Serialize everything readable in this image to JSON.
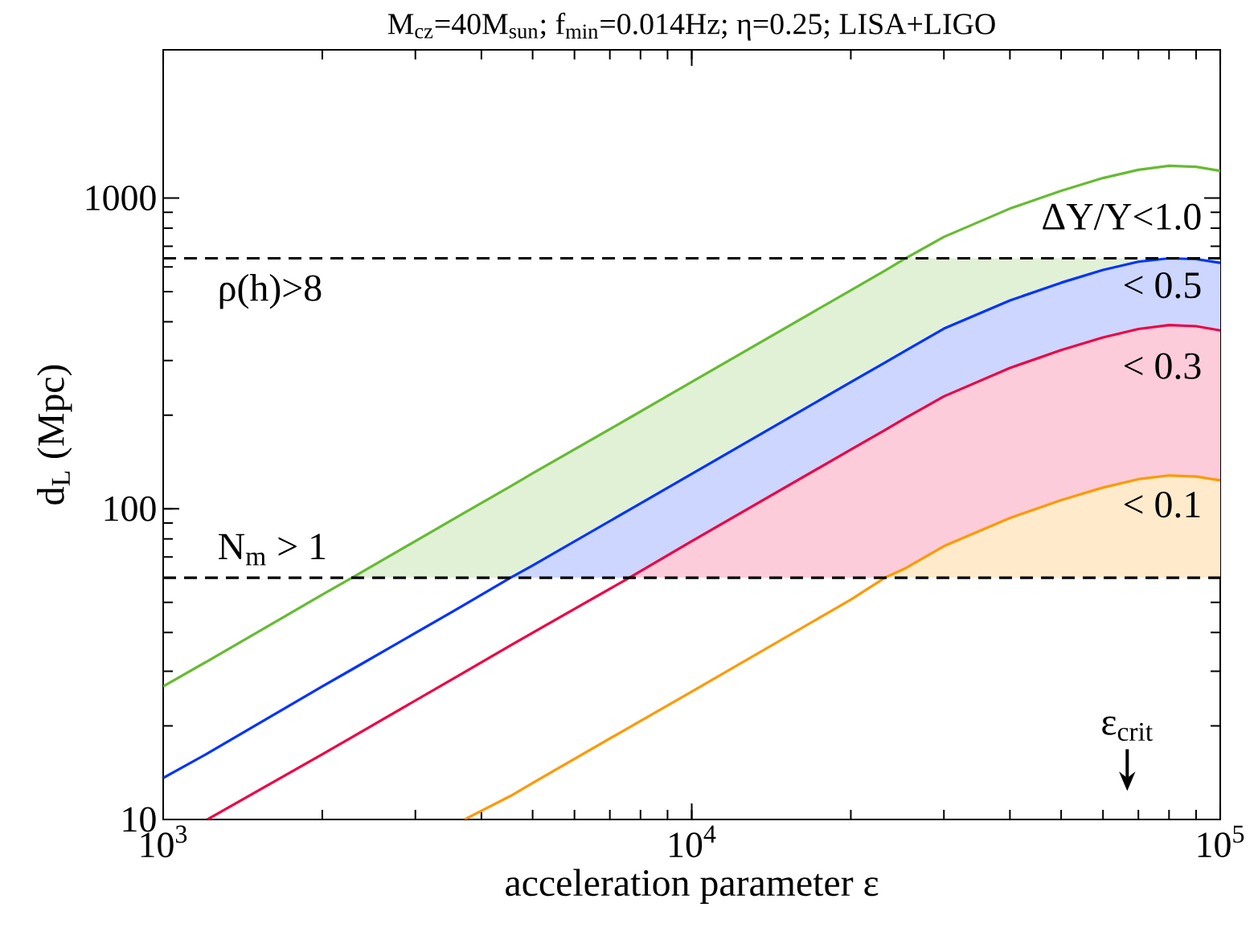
{
  "chart_data": {
    "type": "line",
    "title": "M$_{cz}$=40M$_{sun}$; f$_{min}$=0.014Hz; η=0.25; LISA+LIGO",
    "xlabel": "acceleration parameter ε",
    "ylabel": "d$_{L}$ (Mpc)",
    "log": "xy",
    "grid": false,
    "marker": "none",
    "line_style": "solid",
    "xlim": [
      1000,
      100000
    ],
    "ylim": [
      10,
      3000
    ],
    "xticks": [
      {
        "value": 1000,
        "label": "10$^{3}$"
      },
      {
        "value": 10000,
        "label": "10$^{4}$"
      },
      {
        "value": 100000,
        "label": "10$^{5}$"
      }
    ],
    "yticks": [
      10,
      100,
      1000
    ],
    "x": [
      1000,
      1212,
      2000,
      2276,
      3717,
      4540,
      5000,
      7620,
      10000,
      20000,
      23200,
      25400,
      30000,
      40000,
      50000,
      60000,
      70000,
      80000,
      90000,
      100000
    ],
    "series": [
      {
        "color": "#66bb33",
        "values": [
          26.8,
          32.3,
          52.9,
          60,
          97.1,
          118,
          130,
          196,
          256,
          505,
          584,
          640,
          750,
          925,
          1055,
          1160,
          1233,
          1270,
          1260,
          1223
        ],
        "upper": [
          null,
          null,
          null,
          60,
          null,
          118,
          130,
          196,
          256,
          505,
          584,
          640,
          640,
          640,
          640,
          640,
          640,
          640,
          640,
          640
        ],
        "lower": [
          null,
          null,
          null,
          60,
          null,
          60,
          65.7,
          99.2,
          129.5,
          255.5,
          295.5,
          323,
          380,
          468,
          534,
          587,
          624,
          640,
          636,
          619
        ]
      },
      {
        "color": "#0033ff",
        "values": [
          13.6,
          16.3,
          26.8,
          30.4,
          49.1,
          60,
          65.7,
          99.2,
          129.5,
          255.5,
          295.5,
          323,
          380,
          468,
          534,
          587,
          624,
          640,
          636,
          619
        ],
        "upper": [
          null,
          null,
          null,
          null,
          null,
          60,
          null,
          99.2,
          129.5,
          255.5,
          295.5,
          323,
          380,
          468,
          534,
          587,
          624,
          640,
          636,
          619
        ],
        "lower": [
          null,
          null,
          null,
          null,
          null,
          60,
          null,
          60,
          78.6,
          155,
          179,
          196,
          230,
          284,
          324,
          356,
          379,
          390,
          387,
          375
        ]
      },
      {
        "color": "#ee0044",
        "values": [
          null,
          10,
          16.2,
          18.4,
          29.8,
          36.3,
          39.9,
          60,
          78.6,
          155,
          179,
          196,
          230,
          284,
          324,
          356,
          379,
          390,
          387,
          375
        ],
        "upper": [
          null,
          null,
          null,
          null,
          null,
          null,
          null,
          60,
          78.6,
          155,
          179,
          196,
          230,
          284,
          324,
          356,
          379,
          390,
          387,
          375
        ],
        "lower": [
          null,
          null,
          null,
          null,
          null,
          null,
          null,
          60,
          60,
          60,
          60,
          64.4,
          75.8,
          93.4,
          106.6,
          117,
          124.5,
          128,
          127,
          123.5
        ]
      },
      {
        "color": "#ff9900",
        "values": [
          null,
          null,
          null,
          null,
          10,
          11.9,
          13.1,
          19.8,
          25.8,
          51,
          60,
          64.4,
          75.8,
          93.4,
          106.6,
          117,
          124.5,
          128,
          127,
          123.5
        ],
        "upper": [
          null,
          null,
          null,
          null,
          null,
          null,
          null,
          null,
          null,
          null,
          60,
          64.4,
          75.8,
          93.4,
          106.6,
          117,
          124.5,
          128,
          127,
          123.5
        ],
        "lower": [
          null,
          null,
          null,
          null,
          null,
          null,
          null,
          null,
          null,
          null,
          60,
          60,
          60,
          60,
          60,
          60,
          60,
          60,
          60,
          60
        ]
      }
    ],
    "ref_lines": [
      {
        "axis": "y",
        "value": 640,
        "label": "ρ(h)>8",
        "color": "#000000",
        "line_style": "dashed"
      },
      {
        "axis": "y",
        "value": 60,
        "label": "N$_{m}$ > 1",
        "color": "#000000",
        "line_style": "dashed"
      }
    ],
    "annotations": [
      "ε$_{crit}$",
      "ΔY/Y<1.0",
      "< 0.5",
      "< 0.3",
      "< 0.1"
    ]
  }
}
